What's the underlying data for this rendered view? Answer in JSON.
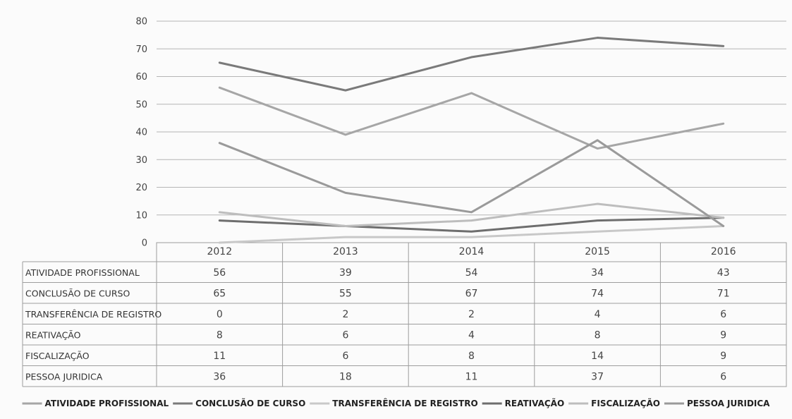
{
  "chart_data": {
    "type": "line",
    "categories": [
      "2012",
      "2013",
      "2014",
      "2015",
      "2016"
    ],
    "ylim": [
      0,
      80
    ],
    "yticks": [
      "0",
      "10",
      "20",
      "30",
      "40",
      "50",
      "60",
      "70",
      "80"
    ],
    "grid": true,
    "legend_position": "bottom",
    "data_table": true,
    "series": [
      {
        "name": "ATIVIDADE PROFISSIONAL",
        "values": [
          56,
          39,
          54,
          34,
          43
        ],
        "color": "#a6a6a6"
      },
      {
        "name": "CONCLUSÃO DE CURSO",
        "values": [
          65,
          55,
          67,
          74,
          71
        ],
        "color": "#7a7a7a"
      },
      {
        "name": "TRANSFERÊNCIA DE REGISTRO",
        "values": [
          0,
          2,
          2,
          4,
          6
        ],
        "color": "#c8c8c8"
      },
      {
        "name": "REATIVAÇÃO",
        "values": [
          8,
          6,
          4,
          8,
          9
        ],
        "color": "#6e6e6e"
      },
      {
        "name": "FISCALIZAÇÃO",
        "values": [
          11,
          6,
          8,
          14,
          9
        ],
        "color": "#bdbdbd"
      },
      {
        "name": "PESSOA JURIDICA",
        "values": [
          36,
          18,
          11,
          37,
          6
        ],
        "color": "#9a9a9a"
      }
    ]
  }
}
